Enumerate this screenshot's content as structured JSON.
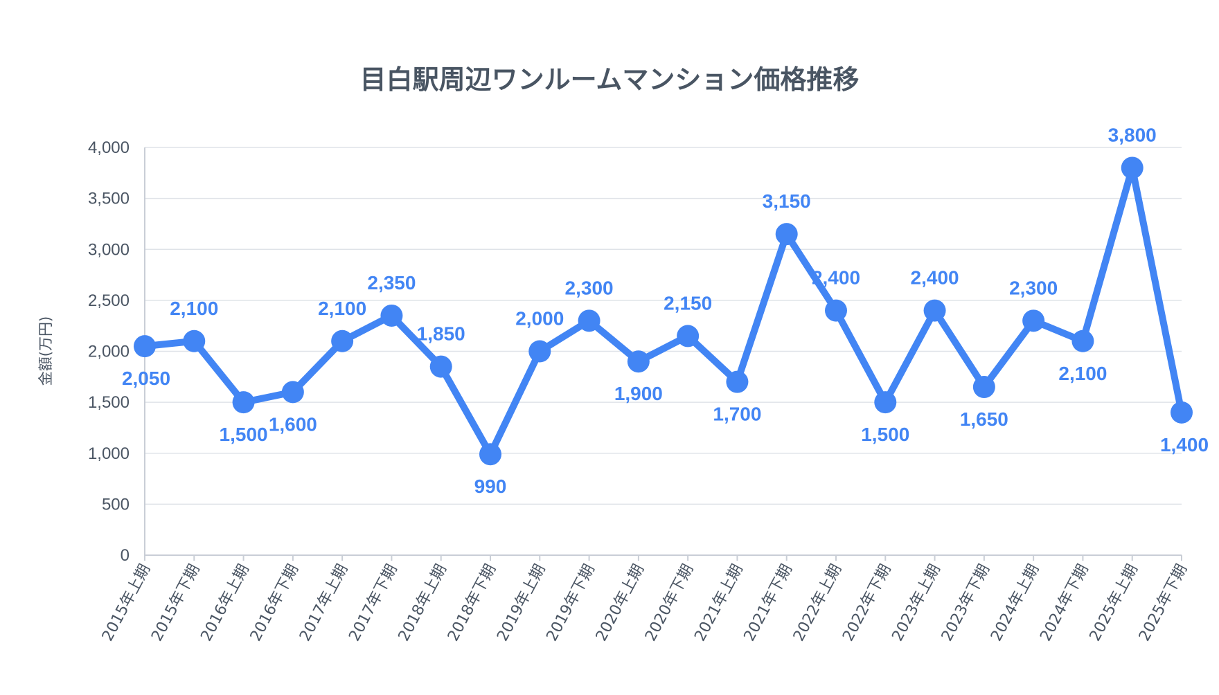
{
  "chart_data": {
    "type": "line",
    "title": "目白駅周辺ワンルームマンション価格推移",
    "xlabel": "",
    "ylabel": "金額(万円)",
    "ylim": [
      0,
      4000
    ],
    "yticks": [
      0,
      500,
      1000,
      1500,
      2000,
      2500,
      3000,
      3500,
      4000
    ],
    "ytick_labels": [
      "0",
      "500",
      "1,000",
      "1,500",
      "2,000",
      "2,500",
      "3,000",
      "3,500",
      "4,000"
    ],
    "grid": true,
    "legend": "none",
    "color": "#4285f4",
    "categories": [
      "2015年上期",
      "2015年下期",
      "2016年上期",
      "2016年下期",
      "2017年上期",
      "2017年下期",
      "2018年上期",
      "2018年下期",
      "2019年上期",
      "2019年下期",
      "2020年上期",
      "2020年下期",
      "2021年上期",
      "2021年下期",
      "2022年上期",
      "2022年下期",
      "2023年上期",
      "2023年下期",
      "2024年上期",
      "2024年下期",
      "2025年上期",
      "2025年下期"
    ],
    "series": [
      {
        "values": [
          2050,
          2100,
          1500,
          1600,
          2100,
          2350,
          1850,
          990,
          2000,
          2300,
          1900,
          2150,
          1700,
          3150,
          2400,
          1500,
          2400,
          1650,
          2300,
          2100,
          3800,
          1400
        ],
        "labels": [
          "2,050",
          "2,100",
          "1,500",
          "1,600",
          "2,100",
          "2,350",
          "1,850",
          "990",
          "2,000",
          "2,300",
          "1,900",
          "2,150",
          "1,700",
          "3,150",
          "2,400",
          "1,500",
          "2,400",
          "1,650",
          "2,300",
          "2,100",
          "3,800",
          "1,400"
        ]
      }
    ]
  }
}
